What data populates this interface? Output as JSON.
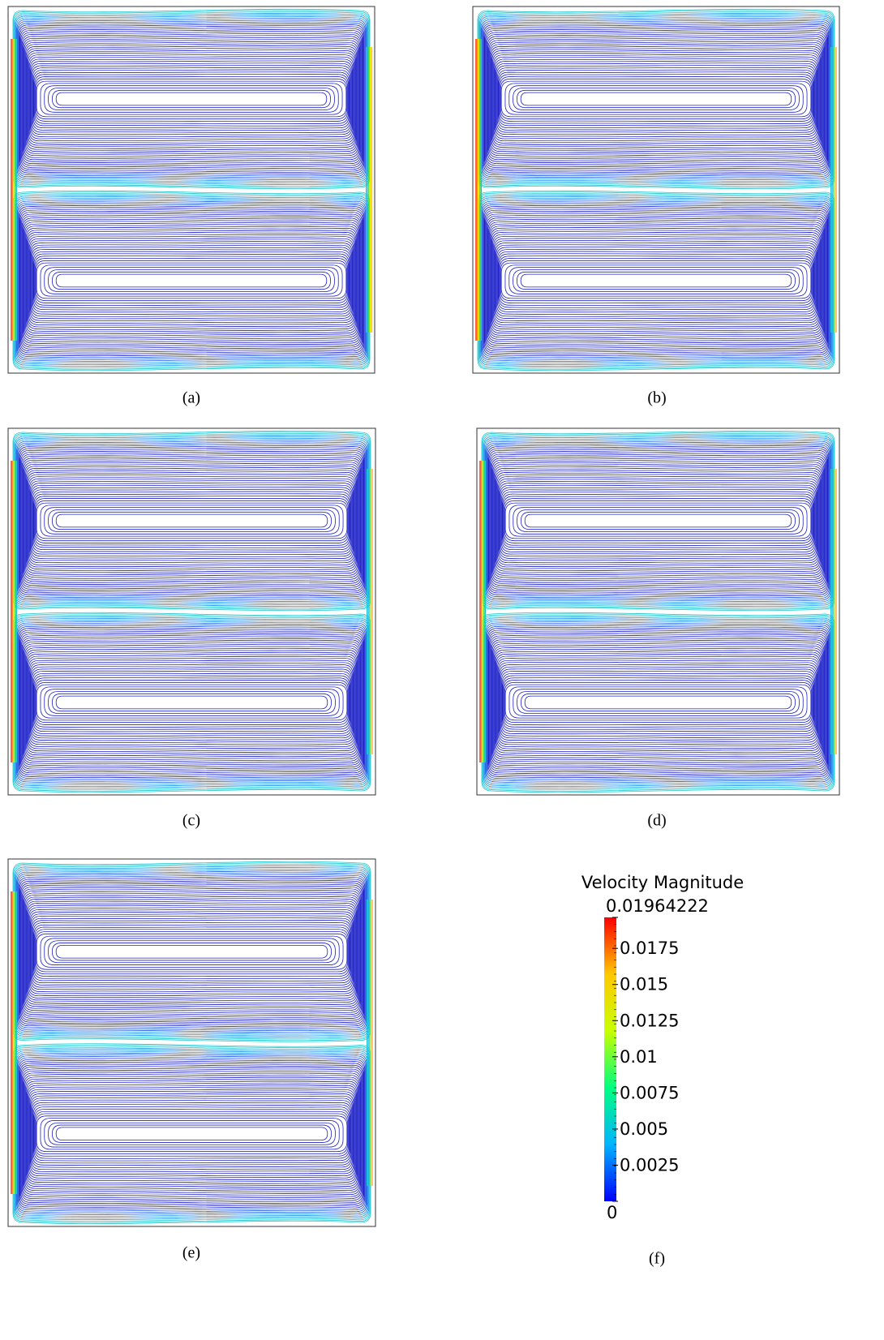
{
  "panels": [
    {
      "label": "(a)"
    },
    {
      "label": "(b)"
    },
    {
      "label": "(c)"
    },
    {
      "label": "(d)"
    },
    {
      "label": "(e)"
    }
  ],
  "colorbar": {
    "title": "Velocity Magnitude",
    "range": [
      0,
      0.01964222
    ],
    "ticks": [
      0,
      0.0025,
      0.005,
      0.0075,
      0.01,
      0.0125,
      0.015,
      0.0175,
      0.01964222
    ],
    "colormap": [
      "#0000ff",
      "#00b4ff",
      "#00ff80",
      "#c8ff00",
      "#ffc800",
      "#ff0000"
    ],
    "label": "(f)"
  }
}
